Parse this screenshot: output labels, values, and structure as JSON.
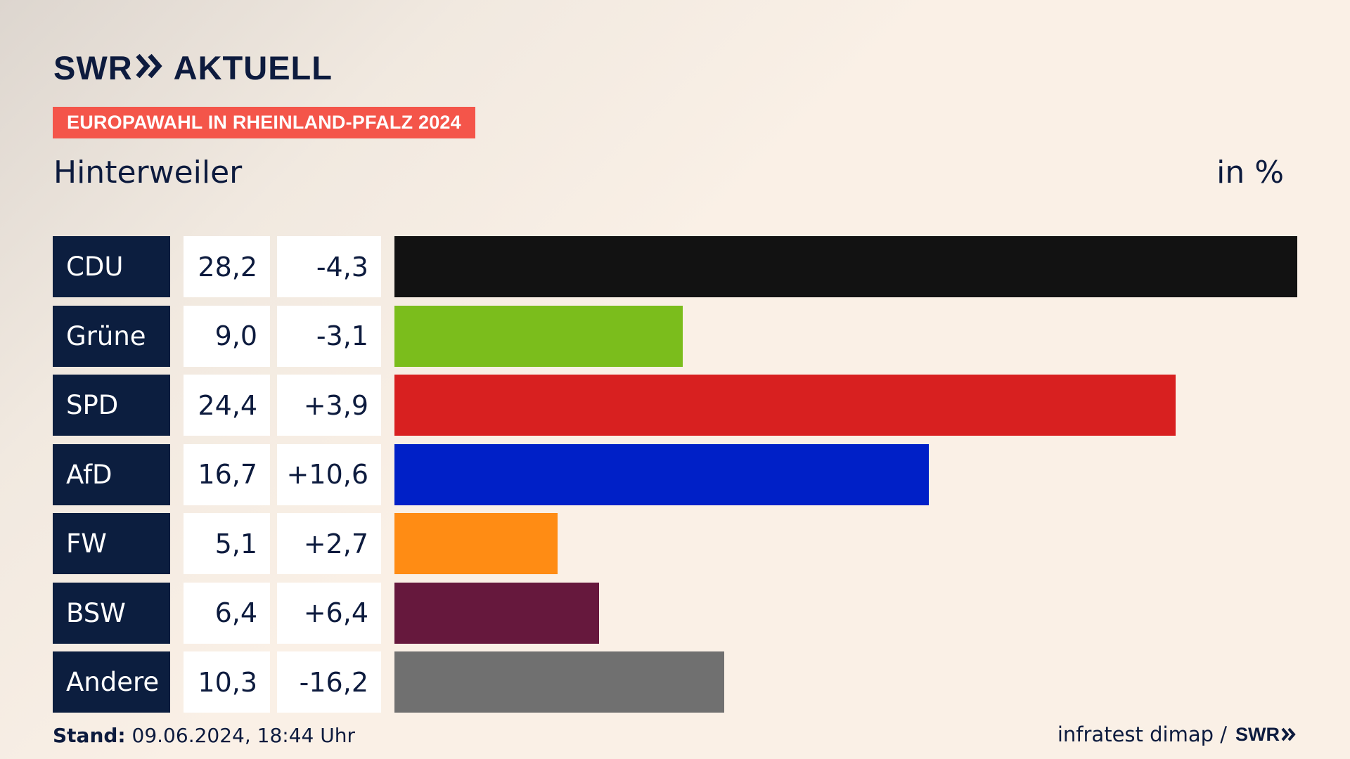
{
  "brand": {
    "logo_left": "SWR",
    "logo_right": "AKTUELL",
    "arrows_icon": "double-chevron-right-icon"
  },
  "banner": "EUROPAWAHL IN RHEINLAND-PFALZ 2024",
  "location": "Hinterweiler",
  "unit": "in %",
  "footer": {
    "stand_label": "Stand:",
    "stand_value": "09.06.2024, 18:44 Uhr",
    "source": "infratest dimap /",
    "source_brand": "SWR"
  },
  "chart_data": {
    "type": "bar",
    "orientation": "horizontal",
    "categories": [
      "CDU",
      "Grüne",
      "SPD",
      "AfD",
      "FW",
      "BSW",
      "Andere"
    ],
    "values": [
      28.2,
      9.0,
      24.4,
      16.7,
      5.1,
      6.4,
      10.3
    ],
    "value_labels": [
      "28,2",
      "9,0",
      "24,4",
      "16,7",
      "5,1",
      "6,4",
      "10,3"
    ],
    "diffs": [
      -4.3,
      -3.1,
      3.9,
      10.6,
      2.7,
      6.4,
      -16.2
    ],
    "diff_labels": [
      "-4,3",
      "-3,1",
      "+3,9",
      "+10,6",
      "+2,7",
      "+6,4",
      "-16,2"
    ],
    "colors": [
      "#121212",
      "#7bbd1c",
      "#d82020",
      "#0020c7",
      "#ff8c14",
      "#66183d",
      "#707070"
    ],
    "xlim": [
      0,
      28.2
    ]
  }
}
